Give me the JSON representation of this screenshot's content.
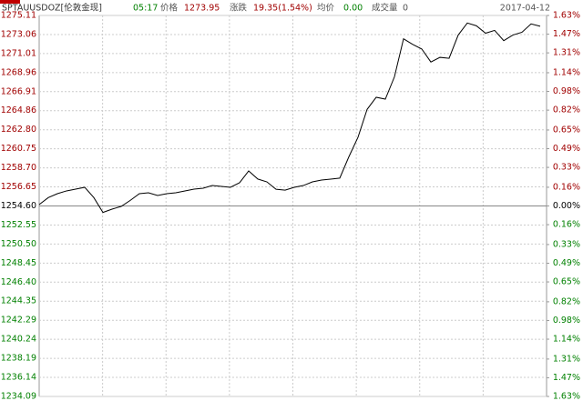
{
  "header": {
    "symbol": "SPTAUUSDOZ[伦敦金现]",
    "time": "05:17",
    "price_label": "价格",
    "price": "1273.95",
    "change_label": "涨跌",
    "change": "19.35(1.54%)",
    "avg_label": "均价",
    "avg": "0.00",
    "volume_label": "成交量",
    "volume": "0",
    "date": "2017-04-12"
  },
  "chart_data": {
    "type": "line",
    "color": "#000000",
    "up_color": "#a00000",
    "down_color": "#008000",
    "base": 1254.6,
    "grid": true,
    "ylim": [
      1234.09,
      1275.11
    ],
    "yticks": [
      1275.11,
      1273.06,
      1271.01,
      1268.96,
      1266.91,
      1264.86,
      {
        "value": 1262.8,
        "label": "1262.80"
      },
      1260.75,
      {
        "value": 1258.7,
        "label": "1258.70"
      },
      1256.65,
      {
        "value": 1254.6,
        "label": "1254.60"
      },
      1252.55,
      {
        "value": 1250.5,
        "label": "1250.50"
      },
      1248.45,
      {
        "value": 1246.4,
        "label": "1246.40"
      },
      1244.35,
      1242.29,
      1240.24,
      1238.19,
      1236.14,
      1234.09
    ],
    "y2lim": [
      -1.63,
      1.63
    ],
    "y2ticks": [
      {
        "value": 1.63,
        "label": "1.63%"
      },
      {
        "value": 1.47,
        "label": "1.47%"
      },
      {
        "value": 1.31,
        "label": "1.31%"
      },
      {
        "value": 1.14,
        "label": "1.14%"
      },
      {
        "value": 0.98,
        "label": "0.98%"
      },
      {
        "value": 0.82,
        "label": "0.82%"
      },
      {
        "value": 0.65,
        "label": "0.65%"
      },
      {
        "value": 0.49,
        "label": "0.49%"
      },
      {
        "value": 0.33,
        "label": "0.33%"
      },
      {
        "value": 0.16,
        "label": "0.16%"
      },
      {
        "value": 0,
        "label": "0.00%"
      },
      {
        "value": -0.16,
        "label": "0.16%"
      },
      {
        "value": -0.33,
        "label": "0.33%"
      },
      {
        "value": -0.49,
        "label": "0.49%"
      },
      {
        "value": -0.65,
        "label": "0.65%"
      },
      {
        "value": -0.82,
        "label": "0.82%"
      },
      {
        "value": -0.98,
        "label": "0.98%"
      },
      {
        "value": -1.14,
        "label": "1.14%"
      },
      {
        "value": -1.31,
        "label": "1.31%"
      },
      {
        "value": -1.47,
        "label": "1.47%"
      },
      {
        "value": -1.63,
        "label": "1.63%"
      }
    ],
    "values": [
      1254.75,
      1255.5,
      1255.92,
      1256.22,
      1256.41,
      1256.61,
      1255.5,
      1253.9,
      1254.26,
      1254.55,
      1255.2,
      1255.92,
      1256.02,
      1255.73,
      1255.92,
      1256.02,
      1256.22,
      1256.41,
      1256.51,
      1256.8,
      1256.71,
      1256.61,
      1257.1,
      1258.37,
      1257.5,
      1257.19,
      1256.4,
      1256.3,
      1256.61,
      1256.8,
      1257.19,
      1257.39,
      1257.49,
      1257.6,
      1259.9,
      1262.0,
      1265.0,
      1266.3,
      1266.1,
      1268.5,
      1272.6,
      1272.0,
      1271.5,
      1270.1,
      1270.6,
      1270.5,
      1273.0,
      1274.3,
      1274.0,
      1273.2,
      1273.5,
      1272.4,
      1273.0,
      1273.3,
      1274.2,
      1273.95
    ]
  }
}
